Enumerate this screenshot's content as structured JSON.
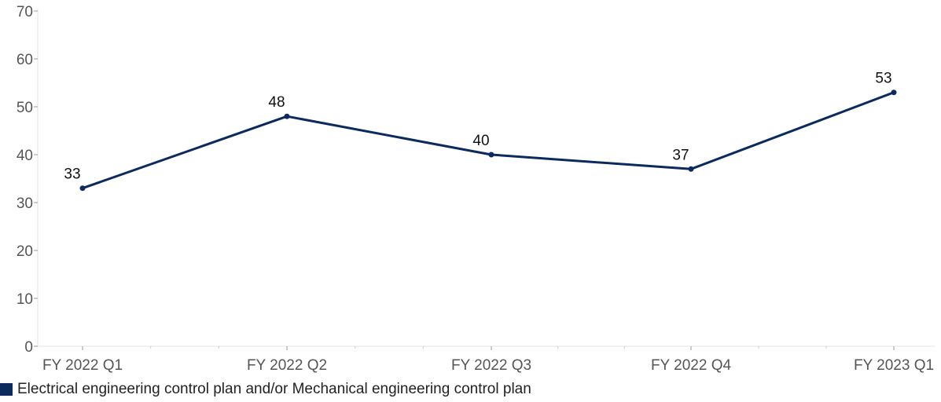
{
  "chart_data": {
    "type": "line",
    "categories": [
      "FY 2022 Q1",
      "FY 2022 Q2",
      "FY 2022 Q3",
      "FY 2022 Q4",
      "FY 2023 Q1"
    ],
    "series": [
      {
        "name": "Electrical engineering control plan and/or Mechanical engineering control plan",
        "values": [
          33,
          48,
          40,
          37,
          53
        ],
        "color": "#0b2a5e"
      }
    ],
    "data_labels": [
      "33",
      "48",
      "40",
      "37",
      "53"
    ],
    "yticks": [
      "0",
      "10",
      "20",
      "30",
      "40",
      "50",
      "60",
      "70"
    ],
    "ylim": [
      0,
      70
    ],
    "grid": false,
    "legend_position": "bottom-left",
    "title": "",
    "xlabel": "",
    "ylabel": ""
  }
}
